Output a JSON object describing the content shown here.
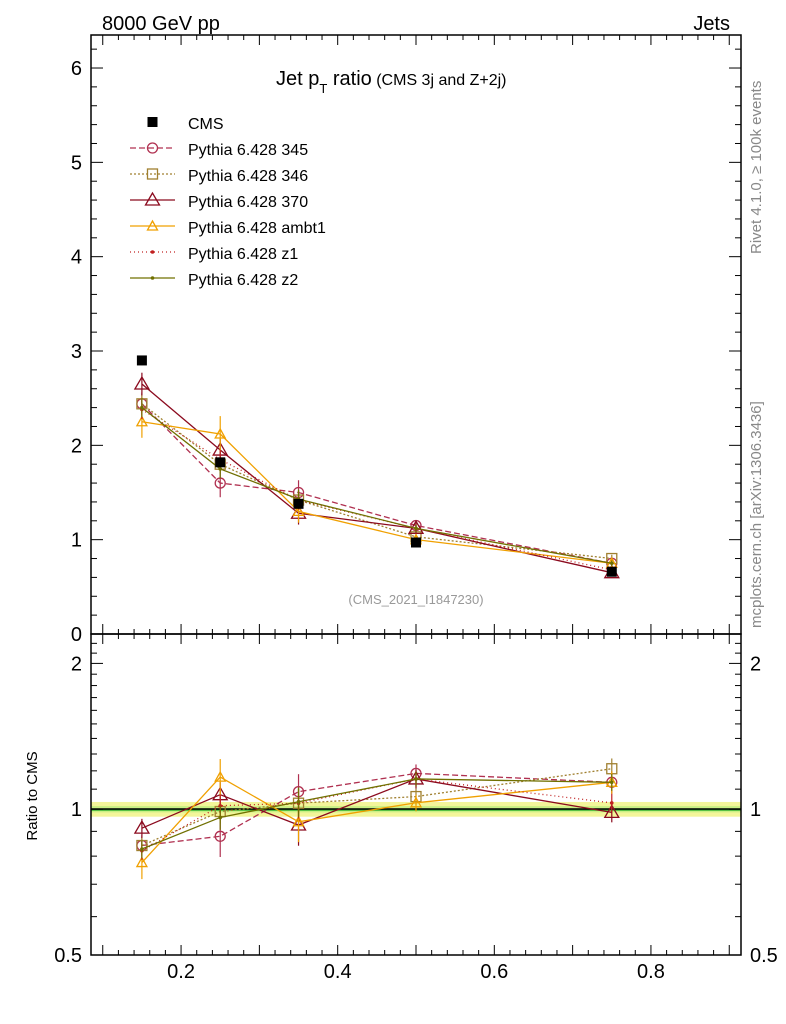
{
  "header": {
    "left": "8000 GeV pp",
    "right": "Jets"
  },
  "side_labels": {
    "rivet": "Rivet 4.1.0, ≥ 100k events",
    "mcplots": "mcplots.cern.ch [arXiv:1306.3436]"
  },
  "chart_data": {
    "type": "line",
    "title": "Jet p",
    "title_sub": "T",
    "title_rest": " ratio",
    "title_note": " (CMS 3j and Z+2j)",
    "analysis_label": "(CMS_2021_I1847230)",
    "xlabel": "",
    "ylabel": "",
    "ratio_ylabel": "Ratio to CMS",
    "xlim": [
      0.085,
      0.915
    ],
    "ylim": [
      0,
      6.35
    ],
    "ratio_ylim": [
      0.5,
      2.3
    ],
    "x_ticks": [
      0.2,
      0.4,
      0.6,
      0.8
    ],
    "x_tick_labels": [
      "0.2",
      "0.4",
      "0.6",
      "0.8"
    ],
    "y_ticks": [
      0,
      1,
      2,
      3,
      4,
      5,
      6
    ],
    "y_tick_labels": [
      "0",
      "1",
      "2",
      "3",
      "4",
      "5",
      "6"
    ],
    "ratio_y_ticks": [
      0.5,
      1,
      2
    ],
    "ratio_y_tick_labels": [
      "0.5",
      "1",
      "2"
    ],
    "x": [
      0.15,
      0.25,
      0.35,
      0.5,
      0.75
    ],
    "data": {
      "name": "CMS",
      "values": [
        2.9,
        1.82,
        1.38,
        0.97,
        0.66
      ],
      "errors": [
        0.05,
        0.04,
        0.03,
        0.03,
        0.02
      ]
    },
    "series": [
      {
        "name": "Pythia 6.428 345",
        "color": "#b03050",
        "dash": "6,3",
        "marker": "circle",
        "values": [
          2.44,
          1.6,
          1.5,
          1.15,
          0.75
        ],
        "errors": [
          0.12,
          0.15,
          0.13,
          0.05,
          0.04
        ]
      },
      {
        "name": "Pythia 6.428 346",
        "color": "#a08030",
        "dash": "2,2",
        "marker": "square",
        "values": [
          2.44,
          1.8,
          1.42,
          1.03,
          0.8
        ],
        "errors": [
          0.1,
          0.1,
          0.1,
          0.04,
          0.04
        ]
      },
      {
        "name": "Pythia 6.428 370",
        "color": "#8b0a1e",
        "dash": "",
        "marker": "triangle",
        "values": [
          2.65,
          1.95,
          1.28,
          1.12,
          0.65
        ],
        "errors": [
          0.12,
          0.12,
          0.12,
          0.05,
          0.03
        ]
      },
      {
        "name": "Pythia 6.428 ambt1",
        "color": "#f0a000",
        "dash": "",
        "marker": "triangle-small",
        "values": [
          2.25,
          2.12,
          1.3,
          1.0,
          0.75
        ],
        "errors": [
          0.17,
          0.19,
          0.12,
          0.04,
          0.04
        ]
      },
      {
        "name": "Pythia 6.428 z1",
        "color": "#c02020",
        "dash": "1,3",
        "marker": "dot",
        "values": [
          2.38,
          1.85,
          1.42,
          1.12,
          0.68
        ],
        "errors": [
          0.1,
          0.1,
          0.1,
          0.04,
          0.03
        ]
      },
      {
        "name": "Pythia 6.428 z2",
        "color": "#707000",
        "dash": "",
        "marker": "dot",
        "values": [
          2.4,
          1.75,
          1.43,
          1.12,
          0.75
        ],
        "errors": [
          0.1,
          0.1,
          0.1,
          0.04,
          0.03
        ]
      }
    ]
  }
}
